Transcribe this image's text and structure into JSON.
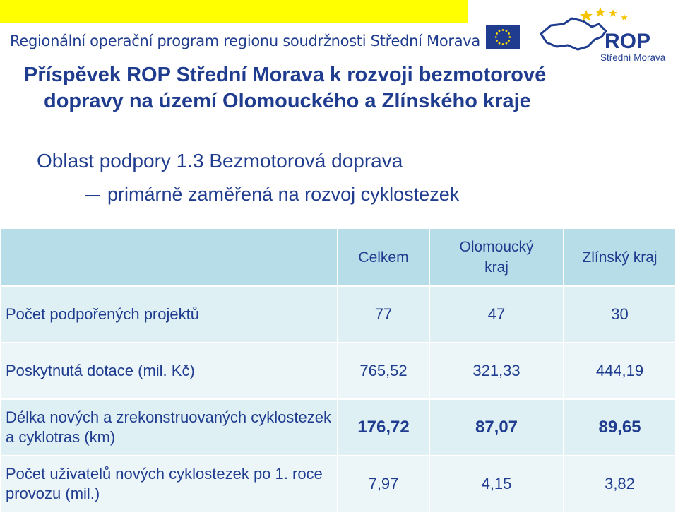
{
  "header": {
    "program_name": "Regionální operační program regionu soudržnosti Střední Morava",
    "logo_text": "ROP",
    "logo_subtext": "Střední Morava"
  },
  "title": {
    "line1": "Příspěvek ROP Střední Morava k rozvoji bezmotorové",
    "line2": "dopravy na území Olomouckého a Zlínského kraje"
  },
  "area": {
    "heading": "Oblast podpory 1.3 Bezmotorová doprava",
    "subheading": "primárně zaměřená na rozvoj cyklostezek"
  },
  "table": {
    "columns": [
      "Celkem",
      "Olomoucký kraj",
      "Zlínský kraj"
    ],
    "rows": [
      {
        "label": "Počet podpořených projektů",
        "values": [
          "77",
          "47",
          "30"
        ]
      },
      {
        "label": "Poskytnutá dotace (mil. Kč)",
        "values": [
          "765,52",
          "321,33",
          "444,19"
        ]
      },
      {
        "label": "Délka nových a zrekonstruovaných cyklostezek a cyklotras (km)",
        "values": [
          "176,72",
          "87,07",
          "89,65"
        ]
      },
      {
        "label": "Počet uživatelů nových cyklostezek po 1. roce provozu (mil.)",
        "values": [
          "7,97",
          "4,15",
          "3,82"
        ]
      }
    ]
  },
  "colors": {
    "text": "#1f3c8f",
    "header_band": "#ffff00",
    "table_header": "#b6dde8",
    "table_row_a": "#dff0f4",
    "table_row_b": "#ecf6f9",
    "logo_star": "#f5c400"
  }
}
